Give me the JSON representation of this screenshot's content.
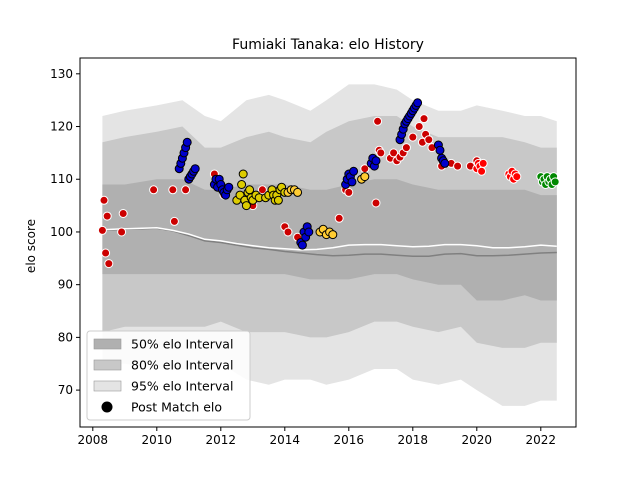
{
  "chart_data": {
    "type": "scatter",
    "title": "Fumiaki Tanaka: elo History",
    "xlabel": "",
    "ylabel": "elo score",
    "xlim": [
      2007.6,
      2023.1
    ],
    "ylim": [
      63,
      133
    ],
    "x_ticks": [
      2008,
      2010,
      2012,
      2014,
      2016,
      2018,
      2020,
      2022
    ],
    "x_tick_labels": [
      "2008",
      "2010",
      "2012",
      "2014",
      "2016",
      "2018",
      "2020",
      "2022"
    ],
    "y_ticks": [
      70,
      80,
      90,
      100,
      110,
      120,
      130
    ],
    "y_tick_labels": [
      "70",
      "80",
      "90",
      "100",
      "110",
      "120",
      "130"
    ],
    "grid": false,
    "legend_placement": "lower-left",
    "legend": [
      {
        "label": "50% elo Interval",
        "color": "#b0b0b0"
      },
      {
        "label": "80% elo Interval",
        "color": "#c8c8c8"
      },
      {
        "label": "95% elo Interval",
        "color": "#e4e4e4"
      },
      {
        "label": "Post Match elo",
        "color": "#000000"
      }
    ],
    "band_x": [
      2008.3,
      2009.0,
      2010.0,
      2010.8,
      2011.5,
      2012.0,
      2012.8,
      2013.5,
      2014.0,
      2014.8,
      2015.3,
      2016.0,
      2016.8,
      2017.5,
      2018.0,
      2018.8,
      2019.5,
      2020.0,
      2020.8,
      2021.5,
      2022.0,
      2022.5
    ],
    "band_95_upper": [
      122,
      123,
      124,
      125,
      122,
      121,
      125,
      126,
      125,
      123,
      125,
      128,
      128,
      127,
      125,
      123,
      123,
      124,
      123,
      122,
      122,
      121
    ],
    "band_95_lower": [
      75,
      75,
      74,
      74,
      74,
      75,
      72,
      71,
      72,
      72,
      71,
      72,
      74,
      74,
      72,
      71,
      72,
      70,
      67,
      67,
      68,
      68
    ],
    "band_80_upper": [
      117,
      118,
      119,
      120,
      116,
      116,
      118,
      119,
      118,
      117,
      119,
      121,
      122,
      122,
      120,
      118,
      118,
      118,
      118,
      117,
      116,
      116
    ],
    "band_80_lower": [
      81,
      82,
      82,
      82,
      82,
      83,
      81,
      81,
      81,
      80,
      80,
      81,
      83,
      83,
      82,
      81,
      82,
      79,
      78,
      78,
      79,
      79
    ],
    "band_50_upper": [
      109,
      109,
      110,
      110,
      108,
      108,
      109,
      109,
      109,
      108,
      108,
      109,
      110,
      110,
      109,
      108,
      108,
      108,
      108,
      108,
      107,
      107
    ],
    "band_50_lower": [
      92,
      92,
      92,
      92,
      92,
      92,
      92,
      92,
      92,
      91,
      91,
      91,
      92,
      92,
      91,
      90,
      90,
      87,
      87,
      88,
      87,
      87
    ],
    "median_x": [
      2008.3,
      2009.0,
      2010.0,
      2010.5,
      2011.0,
      2011.5,
      2012.0,
      2012.5,
      2013.0,
      2013.5,
      2014.0,
      2014.5,
      2015.0,
      2015.5,
      2016.0,
      2016.5,
      2017.0,
      2017.5,
      2018.0,
      2018.5,
      2019.0,
      2019.5,
      2020.0,
      2020.5,
      2021.0,
      2021.5,
      2022.0,
      2022.5
    ],
    "median_grey": [
      100.3,
      100.5,
      100.7,
      100.2,
      99.3,
      98.3,
      98.0,
      97.5,
      97.0,
      96.7,
      96.3,
      96.0,
      95.7,
      95.5,
      95.6,
      95.8,
      95.8,
      95.6,
      95.4,
      95.4,
      95.8,
      95.9,
      95.5,
      95.5,
      95.6,
      95.8,
      96.0,
      96.1
    ],
    "median_white": [
      100.4,
      100.6,
      100.8,
      100.3,
      99.6,
      98.6,
      98.3,
      97.8,
      97.4,
      97.0,
      96.8,
      96.6,
      96.7,
      97.0,
      97.5,
      97.6,
      97.6,
      97.4,
      97.2,
      97.3,
      97.6,
      97.6,
      97.4,
      97.0,
      97.0,
      97.2,
      97.5,
      97.3
    ],
    "series": [
      {
        "fill": "#cc0000",
        "edge": "#ffffff",
        "points": [
          [
            2008.3,
            100.3
          ],
          [
            2008.35,
            106
          ],
          [
            2008.4,
            96
          ],
          [
            2008.45,
            103
          ],
          [
            2008.5,
            94
          ],
          [
            2008.9,
            100
          ],
          [
            2008.95,
            103.5
          ],
          [
            2009.9,
            108
          ],
          [
            2010.5,
            108
          ],
          [
            2010.55,
            102
          ],
          [
            2010.9,
            108
          ],
          [
            2011.8,
            111
          ],
          [
            2012.1,
            107
          ],
          [
            2013.0,
            105
          ],
          [
            2013.3,
            108
          ],
          [
            2013.5,
            107
          ],
          [
            2014.0,
            101
          ],
          [
            2014.1,
            100
          ],
          [
            2014.4,
            99
          ],
          [
            2015.7,
            102.6
          ],
          [
            2015.9,
            108
          ],
          [
            2016.0,
            107.5
          ],
          [
            2016.5,
            112
          ],
          [
            2016.85,
            105.5
          ],
          [
            2016.9,
            121
          ],
          [
            2016.95,
            115.5
          ],
          [
            2017.0,
            115
          ],
          [
            2017.3,
            114
          ],
          [
            2017.4,
            115
          ],
          [
            2017.5,
            113.5
          ],
          [
            2017.6,
            114.2
          ],
          [
            2017.7,
            115
          ],
          [
            2017.8,
            116
          ],
          [
            2018.0,
            118
          ],
          [
            2018.2,
            120
          ],
          [
            2018.3,
            117
          ],
          [
            2018.35,
            121.5
          ],
          [
            2018.4,
            118.5
          ],
          [
            2018.5,
            117.5
          ],
          [
            2018.6,
            116
          ],
          [
            2018.9,
            112.5
          ],
          [
            2019.2,
            113
          ],
          [
            2019.4,
            112.5
          ],
          [
            2019.8,
            112.5
          ],
          [
            2020.0,
            113.5
          ]
        ]
      },
      {
        "fill": "#0000cc",
        "edge": "#000000",
        "points": [
          [
            2010.7,
            112
          ],
          [
            2010.75,
            113
          ],
          [
            2010.8,
            114
          ],
          [
            2010.85,
            115
          ],
          [
            2010.9,
            116
          ],
          [
            2010.95,
            117
          ],
          [
            2011.0,
            110
          ],
          [
            2011.05,
            110.5
          ],
          [
            2011.1,
            111
          ],
          [
            2011.15,
            111.5
          ],
          [
            2011.2,
            112
          ],
          [
            2011.8,
            109
          ],
          [
            2011.85,
            110
          ],
          [
            2011.9,
            108.5
          ],
          [
            2011.95,
            110
          ],
          [
            2012.0,
            109
          ],
          [
            2012.05,
            108
          ],
          [
            2012.1,
            107.5
          ],
          [
            2012.15,
            107
          ],
          [
            2012.2,
            108
          ],
          [
            2012.25,
            108.5
          ],
          [
            2014.5,
            98
          ],
          [
            2014.55,
            97.5
          ],
          [
            2014.6,
            100
          ],
          [
            2014.65,
            99
          ],
          [
            2014.7,
            101
          ],
          [
            2014.75,
            100
          ],
          [
            2015.9,
            109
          ],
          [
            2015.95,
            110
          ],
          [
            2016.0,
            111
          ],
          [
            2016.05,
            110.5
          ],
          [
            2016.1,
            109.5
          ],
          [
            2016.15,
            111.5
          ],
          [
            2016.7,
            113
          ],
          [
            2016.75,
            114
          ],
          [
            2016.8,
            112.5
          ],
          [
            2016.85,
            113.5
          ],
          [
            2017.6,
            117.5
          ],
          [
            2017.65,
            118.5
          ],
          [
            2017.7,
            119.5
          ],
          [
            2017.75,
            120.5
          ],
          [
            2017.8,
            121
          ],
          [
            2017.85,
            121.5
          ],
          [
            2017.9,
            122
          ],
          [
            2017.95,
            122.5
          ],
          [
            2018.0,
            123
          ],
          [
            2018.05,
            123.5
          ],
          [
            2018.1,
            124
          ],
          [
            2018.15,
            124.5
          ],
          [
            2018.8,
            116.5
          ],
          [
            2018.85,
            115.5
          ],
          [
            2018.9,
            114
          ],
          [
            2018.95,
            113.5
          ],
          [
            2019.0,
            113
          ]
        ]
      },
      {
        "fill": "#ddcc00",
        "edge": "#000000",
        "points": [
          [
            2012.5,
            106
          ],
          [
            2012.6,
            107
          ],
          [
            2012.65,
            109
          ],
          [
            2012.7,
            111
          ],
          [
            2012.75,
            106
          ],
          [
            2012.8,
            105
          ],
          [
            2012.85,
            107.5
          ],
          [
            2012.9,
            108
          ],
          [
            2012.95,
            106.5
          ],
          [
            2013.0,
            106
          ],
          [
            2013.1,
            107
          ],
          [
            2013.2,
            106.5
          ],
          [
            2013.4,
            106.5
          ],
          [
            2013.5,
            107
          ],
          [
            2013.6,
            108
          ],
          [
            2013.65,
            107
          ],
          [
            2013.7,
            106
          ],
          [
            2013.75,
            107
          ],
          [
            2013.8,
            106
          ],
          [
            2013.85,
            108
          ],
          [
            2013.9,
            108.5
          ],
          [
            2014.0,
            107.5
          ]
        ]
      },
      {
        "fill": "#ffcc33",
        "edge": "#000000",
        "points": [
          [
            2014.1,
            107.5
          ],
          [
            2014.2,
            108
          ],
          [
            2014.3,
            108
          ],
          [
            2014.4,
            107.5
          ],
          [
            2015.1,
            100
          ],
          [
            2015.2,
            100.5
          ],
          [
            2015.3,
            99.5
          ],
          [
            2015.4,
            100
          ],
          [
            2015.5,
            99.5
          ],
          [
            2016.4,
            110
          ],
          [
            2016.5,
            110.5
          ]
        ]
      },
      {
        "fill": "#ff0000",
        "edge": "#ffffff",
        "points": [
          [
            2020.0,
            112
          ],
          [
            2020.05,
            113
          ],
          [
            2020.1,
            112.5
          ],
          [
            2020.15,
            111.5
          ],
          [
            2020.2,
            113
          ],
          [
            2021.0,
            111
          ],
          [
            2021.05,
            110.5
          ],
          [
            2021.1,
            111.5
          ],
          [
            2021.15,
            110
          ],
          [
            2021.2,
            111
          ],
          [
            2021.25,
            110.5
          ]
        ]
      },
      {
        "fill": "#008800",
        "edge": "#ffffff",
        "points": [
          [
            2022.0,
            110.5
          ],
          [
            2022.05,
            109.5
          ],
          [
            2022.1,
            110
          ],
          [
            2022.15,
            109
          ],
          [
            2022.2,
            110.5
          ],
          [
            2022.25,
            109.5
          ],
          [
            2022.3,
            110
          ],
          [
            2022.35,
            109
          ],
          [
            2022.4,
            110.5
          ],
          [
            2022.45,
            109.5
          ]
        ]
      }
    ]
  }
}
